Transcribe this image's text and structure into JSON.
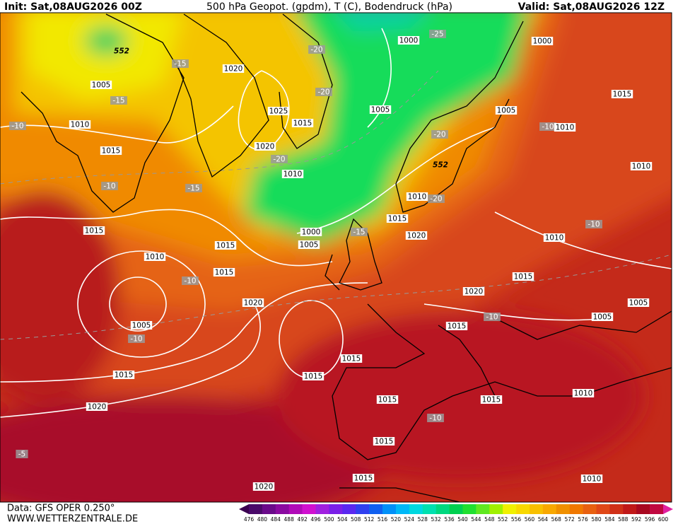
{
  "header": {
    "init": "Init: Sat,08AUG2026 00Z",
    "title": "500 hPa Geopot. (gpdm), T (C), Bodendruck (hPa)",
    "valid": "Valid: Sat,08AUG2026 12Z"
  },
  "footer": {
    "source": "Data: GFS OPER 0.250°",
    "website": "WWW.WETTERZENTRALE.DE"
  },
  "legend": {
    "levels": [
      476,
      480,
      484,
      488,
      492,
      496,
      500,
      504,
      508,
      512,
      516,
      520,
      524,
      528,
      532,
      536,
      540,
      544,
      548,
      552,
      556,
      560,
      564,
      568,
      572,
      576,
      580,
      584,
      588,
      592,
      596,
      600
    ],
    "colors": [
      "#4a0a6a",
      "#6a0a8a",
      "#8a0aa0",
      "#b00ab8",
      "#d010d0",
      "#a020e0",
      "#7a20e8",
      "#5a28f0",
      "#3040f0",
      "#1060f0",
      "#0090f8",
      "#00b8f8",
      "#00d8e0",
      "#00e0b0",
      "#00d880",
      "#00d050",
      "#20e030",
      "#60e820",
      "#a0f000",
      "#f0f000",
      "#f8d800",
      "#f8c000",
      "#f8a800",
      "#f09000",
      "#f07800",
      "#e86010",
      "#e04818",
      "#d03018",
      "#c01818",
      "#a80820",
      "#c00840"
    ],
    "under_color": "#3a0050",
    "over_color": "#e020a0"
  },
  "map_labels": [
    "552",
    "1005",
    "-15",
    "-15",
    "1020",
    "1025",
    "1015",
    "-20",
    "-20",
    "1000",
    "-25",
    "1000",
    "1005",
    "1005",
    "-10",
    "1010",
    "1015",
    "1020",
    "-20",
    "1010",
    "-15",
    "-10",
    "1015",
    "1015",
    "1000",
    "1005",
    "-15",
    "1015",
    "1020",
    "1010",
    "-20",
    "-20",
    "552",
    "1015",
    "-10",
    "1010",
    "1010",
    "1010",
    "-10",
    "1010",
    "-10",
    "1015",
    "1005",
    "-10",
    "1020",
    "1015",
    "1020",
    "1015",
    "1015",
    "1020",
    "1015",
    "-10",
    "1015",
    "1005",
    "1005",
    "1015",
    "1015",
    "-10",
    "1010",
    "1015",
    "1015",
    "1010",
    "1020",
    "-5"
  ]
}
